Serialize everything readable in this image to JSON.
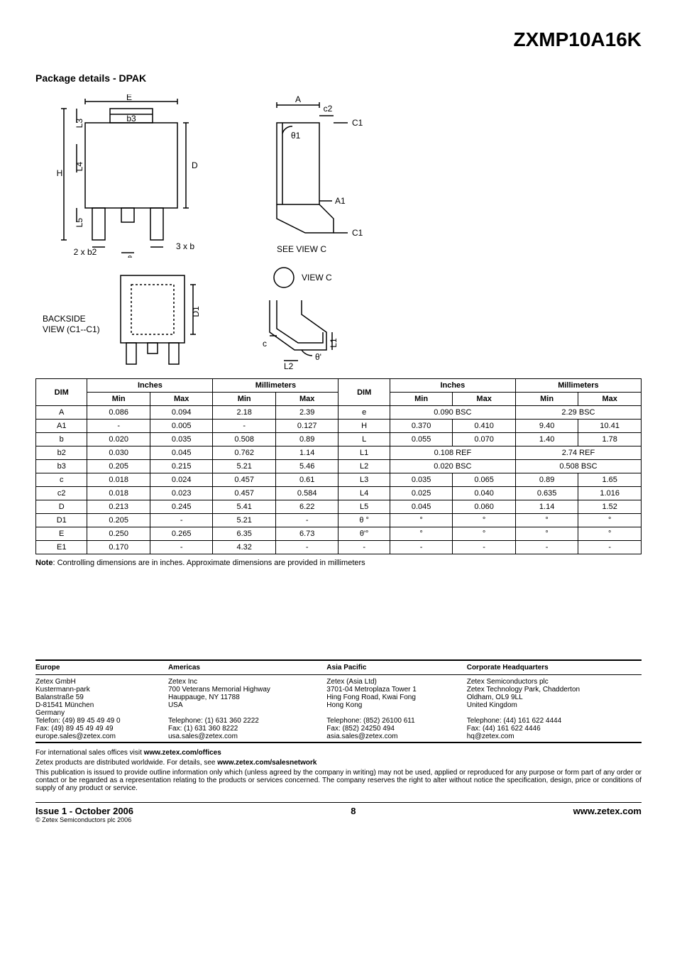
{
  "part_number": "ZXMP10A16K",
  "section_title": "Package details - DPAK",
  "diagram_labels": {
    "E": "E",
    "b3": "b3",
    "L3": "L3",
    "H": "H",
    "L4": "L4",
    "D": "D",
    "L5": "L5",
    "two_b2": "2 x b2",
    "e": "e",
    "three_b": "3 x b",
    "A": "A",
    "c2": "c2",
    "C1_top": "C1",
    "theta1": "θ1",
    "A1": "A1",
    "C1_bot": "C1",
    "see_view_c": "SEE VIEW C",
    "backside": "BACKSIDE",
    "view_c1c1": "VIEW (C1--C1)",
    "D1": "D1",
    "view_c": "VIEW C",
    "c": "c",
    "L1": "L1",
    "theta_prime": "θ'",
    "L2": "L2"
  },
  "dim_table": {
    "headers": {
      "dim": "DIM",
      "inches": "Inches",
      "mm": "Millimeters",
      "min": "Min",
      "max": "Max"
    },
    "rows_left": [
      {
        "dim": "A",
        "imin": "0.086",
        "imax": "0.094",
        "mmin": "2.18",
        "mmax": "2.39"
      },
      {
        "dim": "A1",
        "imin": "-",
        "imax": "0.005",
        "mmin": "-",
        "mmax": "0.127"
      },
      {
        "dim": "b",
        "imin": "0.020",
        "imax": "0.035",
        "mmin": "0.508",
        "mmax": "0.89"
      },
      {
        "dim": "b2",
        "imin": "0.030",
        "imax": "0.045",
        "mmin": "0.762",
        "mmax": "1.14"
      },
      {
        "dim": "b3",
        "imin": "0.205",
        "imax": "0.215",
        "mmin": "5.21",
        "mmax": "5.46"
      },
      {
        "dim": "c",
        "imin": "0.018",
        "imax": "0.024",
        "mmin": "0.457",
        "mmax": "0.61"
      },
      {
        "dim": "c2",
        "imin": "0.018",
        "imax": "0.023",
        "mmin": "0.457",
        "mmax": "0.584"
      },
      {
        "dim": "D",
        "imin": "0.213",
        "imax": "0.245",
        "mmin": "5.41",
        "mmax": "6.22"
      },
      {
        "dim": "D1",
        "imin": "0.205",
        "imax": "-",
        "mmin": "5.21",
        "mmax": "-"
      },
      {
        "dim": "E",
        "imin": "0.250",
        "imax": "0.265",
        "mmin": "6.35",
        "mmax": "6.73"
      },
      {
        "dim": "E1",
        "imin": "0.170",
        "imax": "-",
        "mmin": "4.32",
        "mmax": "-"
      }
    ],
    "rows_right": [
      {
        "dim": "e",
        "span_i": "0.090 BSC",
        "span_m": "2.29 BSC"
      },
      {
        "dim": "H",
        "imin": "0.370",
        "imax": "0.410",
        "mmin": "9.40",
        "mmax": "10.41"
      },
      {
        "dim": "L",
        "imin": "0.055",
        "imax": "0.070",
        "mmin": "1.40",
        "mmax": "1.78"
      },
      {
        "dim": "L1",
        "span_i": "0.108 REF",
        "span_m": "2.74 REF"
      },
      {
        "dim": "L2",
        "span_i": "0.020 BSC",
        "span_m": "0.508 BSC"
      },
      {
        "dim": "L3",
        "imin": "0.035",
        "imax": "0.065",
        "mmin": "0.89",
        "mmax": "1.65"
      },
      {
        "dim": "L4",
        "imin": "0.025",
        "imax": "0.040",
        "mmin": "0.635",
        "mmax": "1.016"
      },
      {
        "dim": "L5",
        "imin": "0.045",
        "imax": "0.060",
        "mmin": "1.14",
        "mmax": "1.52"
      },
      {
        "dim": "θ  °",
        "imin": "°",
        "imax": "°",
        "mmin": "°",
        "mmax": "°"
      },
      {
        "dim": "θ'°",
        "imin": "°",
        "imax": "°",
        "mmin": "°",
        "mmax": "°"
      },
      {
        "dim": "-",
        "imin": "-",
        "imax": "-",
        "mmin": "-",
        "mmax": "-"
      }
    ]
  },
  "note_label": "Note",
  "note_text": ": Controlling dimensions are in inches. Approximate dimensions are provided in millimeters",
  "contacts": {
    "headers": [
      "Europe",
      "Americas",
      "Asia Pacific",
      "Corporate Headquarters"
    ],
    "addr": [
      "Zetex GmbH\nKustermann-park\nBalanstraße 59\nD-81541 München\nGermany\nTelefon: (49) 89 45 49 49 0\nFax: (49) 89 45 49 49 49\neurope.sales@zetex.com",
      "Zetex Inc\n700 Veterans Memorial Highway\nHauppauge, NY 11788\nUSA\n\nTelephone: (1) 631 360 2222\nFax: (1) 631 360 8222\nusa.sales@zetex.com",
      "Zetex (Asia Ltd)\n3701-04 Metroplaza Tower 1\nHing Fong Road, Kwai Fong\nHong Kong\n\nTelephone: (852) 26100 611\nFax: (852) 24250 494\nasia.sales@zetex.com",
      "Zetex Semiconductors plc\nZetex Technology Park, Chadderton\nOldham, OL9 9LL\nUnited Kingdom\n\nTelephone: (44) 161 622 4444\nFax: (44) 161 622 4446\nhq@zetex.com"
    ]
  },
  "legal": {
    "l1a": "For international sales offices visit ",
    "l1b": "www.zetex.com/offices",
    "l2a": "Zetex products are distributed worldwide. For details, see ",
    "l2b": "www.zetex.com/salesnetwork",
    "l3": "This publication is issued to provide outline information only which (unless agreed by the company in writing) may not be used, applied or reproduced for any purpose or form part of any order or contact or be regarded as a representation relating to the products or services concerned. The company reserves the right to alter without notice the specification, design, price or conditions of supply of any product or service."
  },
  "footer": {
    "issue": "Issue 1 - October 2006",
    "copy": "© Zetex Semiconductors plc 2006",
    "page": "8",
    "url": "www.zetex.com"
  },
  "style": {
    "stroke": "#000000",
    "fill_none": "none",
    "diagram_font": "12"
  }
}
